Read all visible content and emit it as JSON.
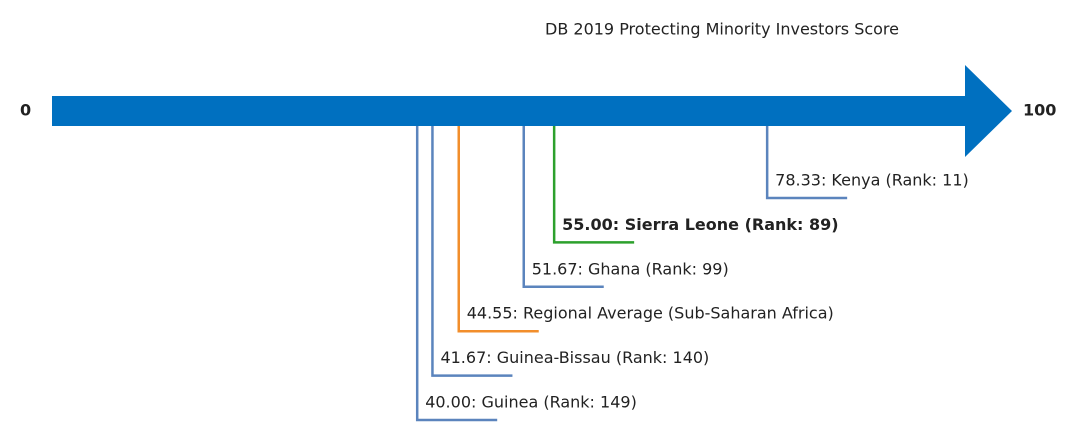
{
  "chart_data": {
    "type": "number-line",
    "title": "DB 2019 Protecting Minority Investors Score",
    "xlim": [
      0,
      100
    ],
    "xticks": [
      0,
      100
    ],
    "axis_color": "#0070c0",
    "values": [
      78.33,
      55,
      51.67,
      44.55,
      41.67,
      40
    ],
    "value_labels": [
      "78.33: Kenya (Rank: 11)",
      "55.00: Sierra Leone (Rank: 89)",
      "51.67: Ghana (Rank: 99)",
      "44.55: Regional Average (Sub-Saharan Africa)",
      "41.67: Guinea-Bissau (Rank: 140)",
      "40.00: Guinea (Rank: 149)"
    ],
    "colors": [
      "#5b84bd",
      "#2ca02c",
      "#5b84bd",
      "#f28e2b",
      "#5b84bd",
      "#5b84bd"
    ],
    "bold": [
      false,
      true,
      false,
      false,
      false,
      false
    ]
  }
}
